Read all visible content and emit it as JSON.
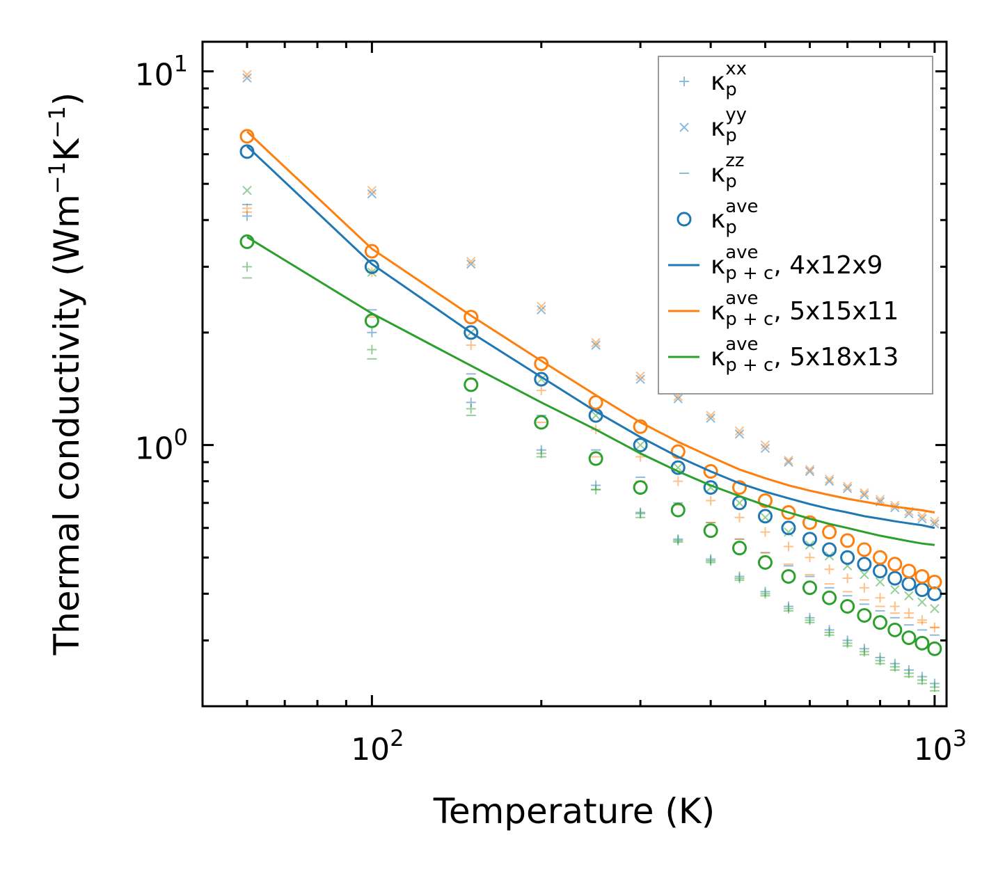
{
  "chart_data": {
    "type": "scatter",
    "xscale": "log",
    "yscale": "log",
    "xlabel": "Temperature (K)",
    "ylabel": {
      "main": "Thermal conductivity (Wm",
      "exp1": "−1",
      "mid": "K",
      "exp2": "−1",
      "close": ")"
    },
    "xlim": [
      50,
      1050
    ],
    "ylim": [
      0.2,
      12
    ],
    "xticks": [
      {
        "base": "10",
        "exp": "2",
        "value": 100
      },
      {
        "base": "10",
        "exp": "3",
        "value": 1000
      }
    ],
    "yticks": [
      {
        "base": "10",
        "exp": "0",
        "value": 1
      },
      {
        "base": "10",
        "exp": "1",
        "value": 10
      }
    ],
    "x": [
      60,
      100,
      150,
      200,
      250,
      300,
      350,
      400,
      450,
      500,
      550,
      600,
      650,
      700,
      750,
      800,
      850,
      900,
      950,
      1000
    ],
    "series": [
      {
        "name": "κp^ave (4x12x9)",
        "color": "#1f77b4",
        "marker": "o",
        "values": [
          6.1,
          3.0,
          2.0,
          1.5,
          1.2,
          1.0,
          0.87,
          0.77,
          0.7,
          0.645,
          0.6,
          0.56,
          0.525,
          0.5,
          0.48,
          0.46,
          0.44,
          0.425,
          0.41,
          0.4
        ]
      },
      {
        "name": "κp^ave (5x15x11)",
        "color": "#ff7f0e",
        "marker": "o",
        "values": [
          6.7,
          3.3,
          2.2,
          1.65,
          1.3,
          1.12,
          0.96,
          0.85,
          0.77,
          0.71,
          0.66,
          0.62,
          0.585,
          0.555,
          0.525,
          0.5,
          0.48,
          0.46,
          0.445,
          0.43
        ]
      },
      {
        "name": "κp^ave (5x18x13)",
        "color": "#2ca02c",
        "marker": "o",
        "values": [
          3.5,
          2.15,
          1.45,
          1.15,
          0.92,
          0.77,
          0.67,
          0.59,
          0.53,
          0.485,
          0.445,
          0.415,
          0.39,
          0.37,
          0.35,
          0.335,
          0.32,
          0.305,
          0.295,
          0.285
        ]
      },
      {
        "name": "κp^xx (4x12x9)",
        "color": "#1f77b4",
        "marker": "+",
        "values": [
          4.1,
          2.0,
          1.3,
          0.97,
          0.78,
          0.66,
          0.56,
          0.495,
          0.445,
          0.405,
          0.37,
          0.345,
          0.32,
          0.3,
          0.285,
          0.27,
          0.26,
          0.25,
          0.24,
          0.23
        ]
      },
      {
        "name": "κp^xx (5x15x11)",
        "color": "#ff7f0e",
        "marker": "+",
        "values": [
          4.3,
          2.9,
          1.85,
          1.4,
          1.1,
          0.93,
          0.8,
          0.71,
          0.64,
          0.585,
          0.535,
          0.5,
          0.465,
          0.44,
          0.415,
          0.39,
          0.37,
          0.355,
          0.34,
          0.325
        ]
      },
      {
        "name": "κp^xx (5x18x13)",
        "color": "#2ca02c",
        "marker": "+",
        "values": [
          3.0,
          1.8,
          1.25,
          0.95,
          0.76,
          0.655,
          0.555,
          0.49,
          0.44,
          0.4,
          0.365,
          0.34,
          0.315,
          0.295,
          0.28,
          0.265,
          0.255,
          0.245,
          0.235,
          0.225
        ]
      },
      {
        "name": "κp^yy (4x12x9)",
        "color": "#1f77b4",
        "marker": "x",
        "values": [
          9.6,
          4.7,
          3.05,
          2.3,
          1.85,
          1.5,
          1.33,
          1.18,
          1.07,
          0.98,
          0.9,
          0.85,
          0.8,
          0.765,
          0.735,
          0.705,
          0.68,
          0.655,
          0.635,
          0.615
        ]
      },
      {
        "name": "κp^yy (5x15x11)",
        "color": "#ff7f0e",
        "marker": "x",
        "values": [
          9.8,
          4.8,
          3.1,
          2.35,
          1.88,
          1.53,
          1.35,
          1.2,
          1.09,
          1.0,
          0.91,
          0.86,
          0.81,
          0.775,
          0.745,
          0.715,
          0.69,
          0.665,
          0.645,
          0.625
        ]
      },
      {
        "name": "κp^yy (5x18x13)",
        "color": "#2ca02c",
        "marker": "x",
        "values": [
          4.8,
          2.9,
          2.0,
          1.5,
          1.2,
          1.0,
          0.87,
          0.77,
          0.7,
          0.64,
          0.585,
          0.54,
          0.505,
          0.475,
          0.45,
          0.43,
          0.41,
          0.395,
          0.38,
          0.365
        ]
      },
      {
        "name": "κp^zz (4x12x9)",
        "color": "#1f77b4",
        "marker": "_",
        "values": [
          4.4,
          2.3,
          1.55,
          1.2,
          0.97,
          0.82,
          0.7,
          0.62,
          0.56,
          0.515,
          0.475,
          0.445,
          0.415,
          0.395,
          0.375,
          0.36,
          0.345,
          0.33,
          0.32,
          0.31
        ]
      },
      {
        "name": "κp^zz (5x15x11)",
        "color": "#ff7f0e",
        "marker": "_",
        "values": [
          4.2,
          2.2,
          1.5,
          1.15,
          0.93,
          0.8,
          0.69,
          0.62,
          0.56,
          0.515,
          0.48,
          0.45,
          0.425,
          0.405,
          0.385,
          0.37,
          0.355,
          0.345,
          0.335,
          0.325
        ]
      },
      {
        "name": "κp^zz (5x18x13)",
        "color": "#2ca02c",
        "marker": "_",
        "values": [
          2.8,
          1.7,
          1.2,
          0.93,
          0.76,
          0.64,
          0.55,
          0.485,
          0.435,
          0.395,
          0.36,
          0.335,
          0.31,
          0.29,
          0.275,
          0.26,
          0.25,
          0.24,
          0.23,
          0.22
        ]
      },
      {
        "name": "κp+c^ave, 4x12x9",
        "color": "#1f77b4",
        "marker": "line",
        "values": [
          6.3,
          3.05,
          2.0,
          1.52,
          1.23,
          1.05,
          0.93,
          0.85,
          0.79,
          0.75,
          0.72,
          0.695,
          0.675,
          0.66,
          0.645,
          0.635,
          0.625,
          0.617,
          0.61,
          0.6
        ]
      },
      {
        "name": "κp+c^ave, 5x15x11",
        "color": "#ff7f0e",
        "marker": "line",
        "values": [
          6.9,
          3.35,
          2.22,
          1.68,
          1.36,
          1.15,
          1.02,
          0.93,
          0.86,
          0.815,
          0.78,
          0.755,
          0.735,
          0.718,
          0.705,
          0.693,
          0.684,
          0.676,
          0.669,
          0.66
        ]
      },
      {
        "name": "κp+c^ave, 5x18x13",
        "color": "#2ca02c",
        "marker": "line",
        "values": [
          3.6,
          2.25,
          1.63,
          1.3,
          1.1,
          0.95,
          0.85,
          0.78,
          0.73,
          0.69,
          0.66,
          0.635,
          0.615,
          0.6,
          0.585,
          0.572,
          0.562,
          0.553,
          0.545,
          0.54
        ]
      }
    ],
    "legend": {
      "position": "upper-right",
      "entries": [
        {
          "marker": "+",
          "color": "#1f77b4",
          "sym": "κ",
          "sub": "p",
          "sup": "xx",
          "suffix": ""
        },
        {
          "marker": "x",
          "color": "#1f77b4",
          "sym": "κ",
          "sub": "p",
          "sup": "yy",
          "suffix": ""
        },
        {
          "marker": "_",
          "color": "#1f77b4",
          "sym": "κ",
          "sub": "p",
          "sup": "zz",
          "suffix": ""
        },
        {
          "marker": "o",
          "color": "#1f77b4",
          "sym": "κ",
          "sub": "p",
          "sup": "ave",
          "suffix": ""
        },
        {
          "marker": "line",
          "color": "#1f77b4",
          "sym": "κ",
          "sub": "p + c",
          "sup": "ave",
          "suffix": ", 4x12x9"
        },
        {
          "marker": "line",
          "color": "#ff7f0e",
          "sym": "κ",
          "sub": "p + c",
          "sup": "ave",
          "suffix": ", 5x15x11"
        },
        {
          "marker": "line",
          "color": "#2ca02c",
          "sym": "κ",
          "sub": "p + c",
          "sup": "ave",
          "suffix": ", 5x18x13"
        }
      ]
    }
  }
}
